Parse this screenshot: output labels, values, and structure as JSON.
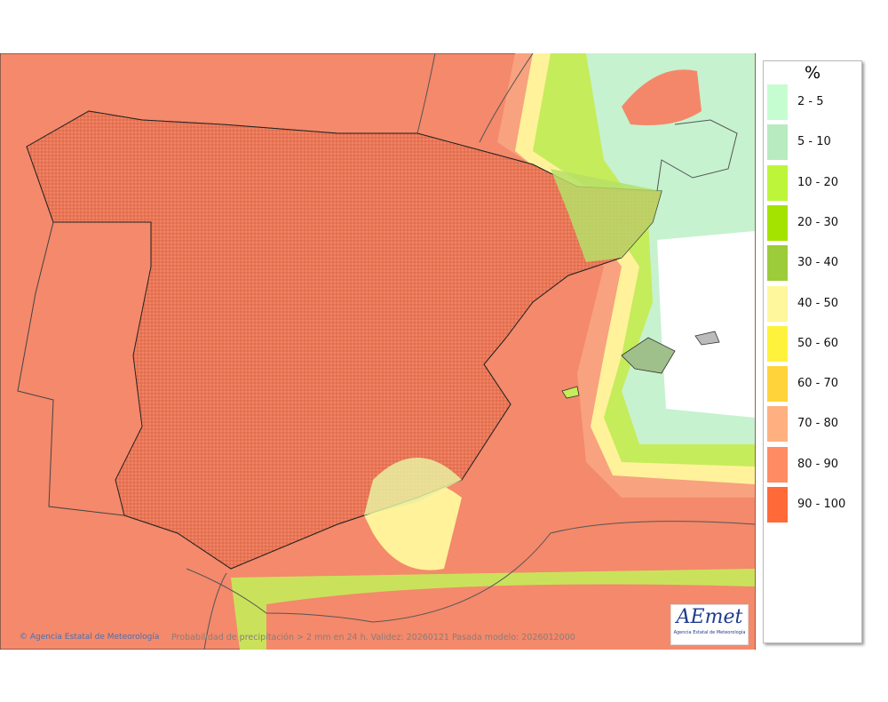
{
  "legend": {
    "title": "%",
    "items": [
      {
        "label": "2 - 5",
        "color": "#c6fdd0"
      },
      {
        "label": "5 - 10",
        "color": "#b8ebc0"
      },
      {
        "label": "10 - 20",
        "color": "#bdf53a"
      },
      {
        "label": "20 - 30",
        "color": "#a4e200"
      },
      {
        "label": "30 - 40",
        "color": "#9ccc3a"
      },
      {
        "label": "40 - 50",
        "color": "#fff79b"
      },
      {
        "label": "50 - 60",
        "color": "#fff23c"
      },
      {
        "label": "60 - 70",
        "color": "#ffd33a"
      },
      {
        "label": "70 - 80",
        "color": "#ffb080"
      },
      {
        "label": "80 - 90",
        "color": "#ff8c62"
      },
      {
        "label": "90 - 100",
        "color": "#ff6a38"
      }
    ]
  },
  "footer": {
    "credit": "Agencia Estatal de Meteorología",
    "caption": "Probabilidad de precipitación > 2 mm en 24 h. Validez: 20260121 Pasada modelo: 2026012000"
  },
  "logo": {
    "brand": "AEmet",
    "subtitle": "Agencia Estatal de Meteorología"
  }
}
